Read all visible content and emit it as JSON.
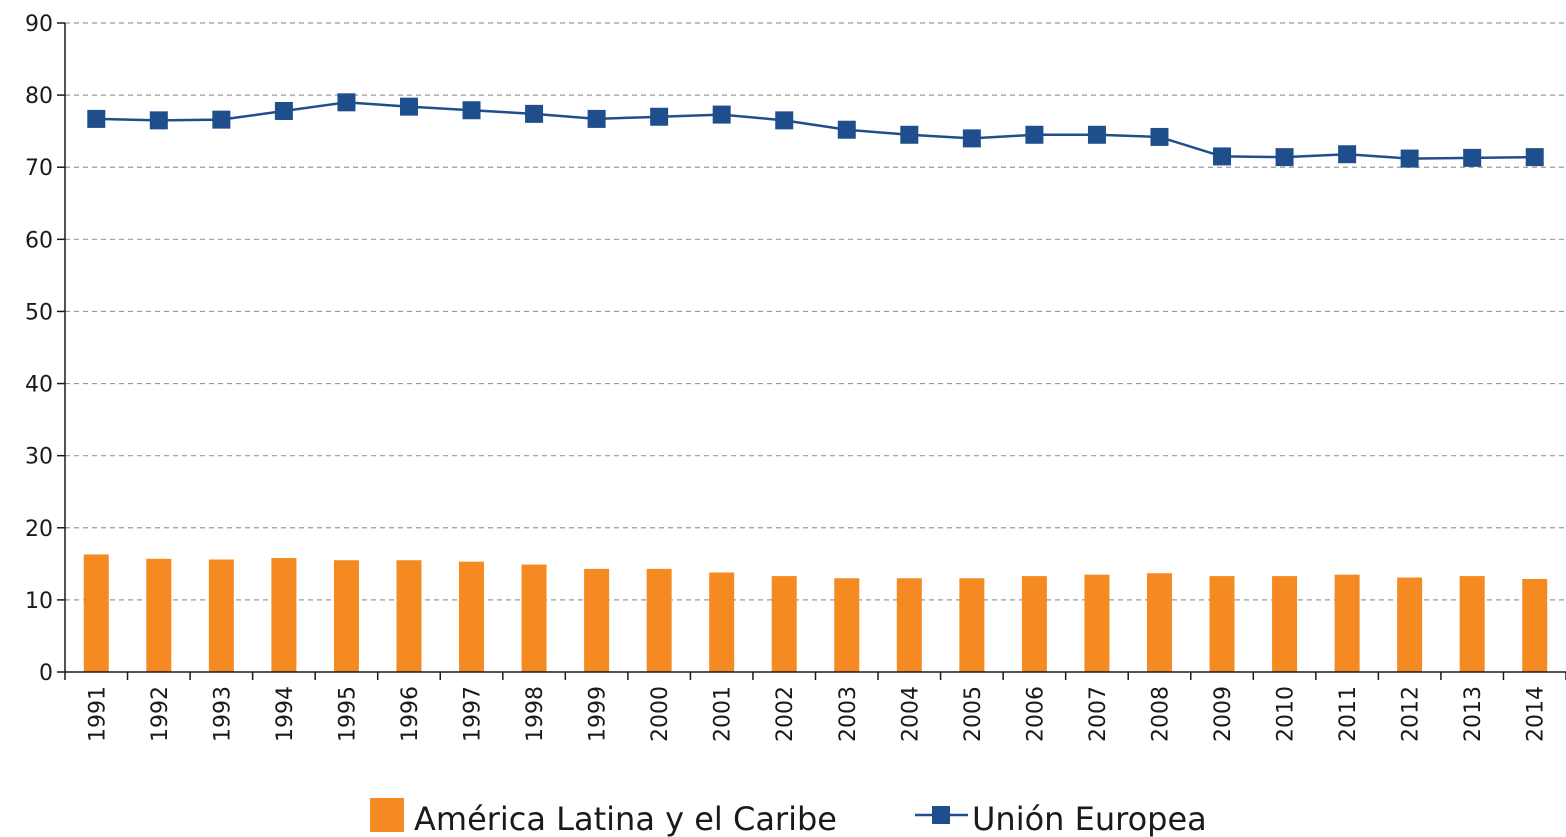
{
  "chart_data": {
    "type": "bar",
    "categories": [
      "1991",
      "1992",
      "1993",
      "1994",
      "1995",
      "1996",
      "1997",
      "1998",
      "1999",
      "2000",
      "2001",
      "2002",
      "2003",
      "2004",
      "2005",
      "2006",
      "2007",
      "2008",
      "2009",
      "2010",
      "2011",
      "2012",
      "2013",
      "2014"
    ],
    "series": [
      {
        "name": "América Latina y el Caribe",
        "type": "bar",
        "color": "#f58a23",
        "values": [
          16.3,
          15.7,
          15.6,
          15.8,
          15.5,
          15.5,
          15.3,
          14.9,
          14.3,
          14.3,
          13.8,
          13.3,
          13.0,
          13.0,
          13.0,
          13.3,
          13.5,
          13.7,
          13.3,
          13.3,
          13.5,
          13.1,
          13.3,
          12.9
        ]
      },
      {
        "name": "Unión Europea",
        "type": "line",
        "color": "#1f4e8c",
        "values": [
          76.7,
          76.5,
          76.6,
          77.8,
          79.0,
          78.4,
          77.9,
          77.4,
          76.7,
          77.0,
          77.3,
          76.5,
          75.2,
          74.5,
          74.0,
          74.5,
          74.5,
          74.2,
          71.5,
          71.4,
          71.8,
          71.2,
          71.3,
          71.4
        ]
      }
    ],
    "ylim": [
      0,
      90
    ],
    "yticks": [
      "0",
      "10",
      "20",
      "30",
      "40",
      "50",
      "60",
      "70",
      "80",
      "90"
    ],
    "title": "",
    "xlabel": "",
    "ylabel": "",
    "grid": "horizontal-dashed",
    "legend_placement": "bottom-center",
    "axis_color": "#1a1a1a",
    "grid_color": "#9a9a9a"
  }
}
